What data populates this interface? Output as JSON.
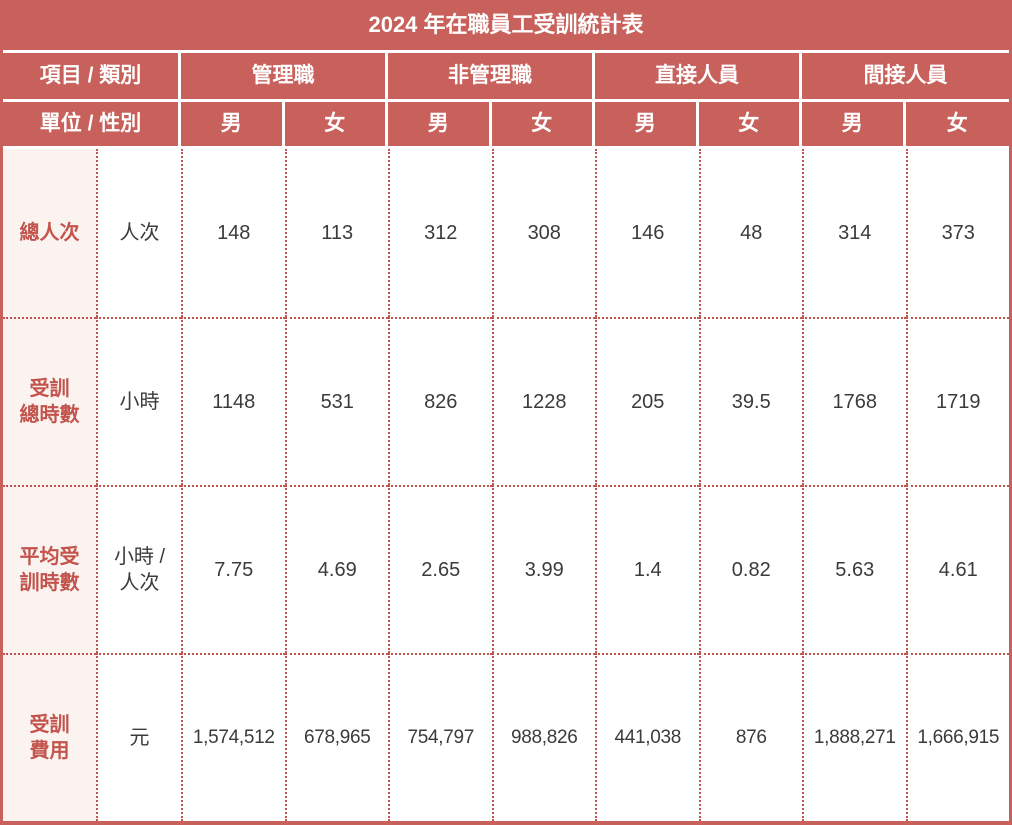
{
  "chart_data": {
    "type": "table",
    "title": "2024 年在職員工受訓統計表",
    "column_groups": [
      "管理職",
      "非管理職",
      "直接人員",
      "間接人員"
    ],
    "columns": [
      "管理職 男",
      "管理職 女",
      "非管理職 男",
      "非管理職 女",
      "直接人員 男",
      "直接人員 女",
      "間接人員 男",
      "間接人員 女"
    ],
    "rows": [
      {
        "item": "總人次",
        "unit": "人次",
        "values": [
          148,
          113,
          312,
          308,
          146,
          48,
          314,
          373
        ]
      },
      {
        "item": "受訓總時數",
        "unit": "小時",
        "values": [
          1148,
          531,
          826,
          1228,
          205,
          39.5,
          1768,
          1719
        ]
      },
      {
        "item": "平均受訓時數",
        "unit": "小時 / 人次",
        "values": [
          7.75,
          4.69,
          2.65,
          3.99,
          1.4,
          0.82,
          5.63,
          4.61
        ]
      },
      {
        "item": "受訓費用",
        "unit": "元",
        "values": [
          1574512,
          678965,
          754797,
          988826,
          441038,
          876,
          1888271,
          1666915
        ]
      }
    ]
  },
  "table": {
    "title": "2024 年在職員工受訓統計表",
    "header": {
      "corner_row1": "項目 / 類別",
      "corner_row2": "單位 / 性別",
      "groups": [
        "管理職",
        "非管理職",
        "直接人員",
        "間接人員"
      ],
      "genders": [
        "男",
        "女",
        "男",
        "女",
        "男",
        "女",
        "男",
        "女"
      ]
    },
    "rows": [
      {
        "item": "總人次",
        "unit": "人次",
        "values": [
          "148",
          "113",
          "312",
          "308",
          "146",
          "48",
          "314",
          "373"
        ]
      },
      {
        "item": "受訓\n總時數",
        "unit": "小時",
        "values": [
          "1148",
          "531",
          "826",
          "1228",
          "205",
          "39.5",
          "1768",
          "1719"
        ]
      },
      {
        "item": "平均受\n訓時數",
        "unit": "小時 /\n人次",
        "values": [
          "7.75",
          "4.69",
          "2.65",
          "3.99",
          "1.4",
          "0.82",
          "5.63",
          "4.61"
        ]
      },
      {
        "item": "受訓\n費用",
        "unit": "元",
        "values": [
          "1,574,512",
          "678,965",
          "754,797",
          "988,826",
          "441,038",
          "876",
          "1,888,271",
          "1,666,915"
        ]
      }
    ],
    "colors": {
      "header-bg": "#C8605B",
      "header-text": "#FFFFFF",
      "item-bg": "#FAF3EF",
      "item-text": "#C2544D",
      "value-text": "#3B3B3B",
      "grid-border": "#C2544D"
    }
  }
}
